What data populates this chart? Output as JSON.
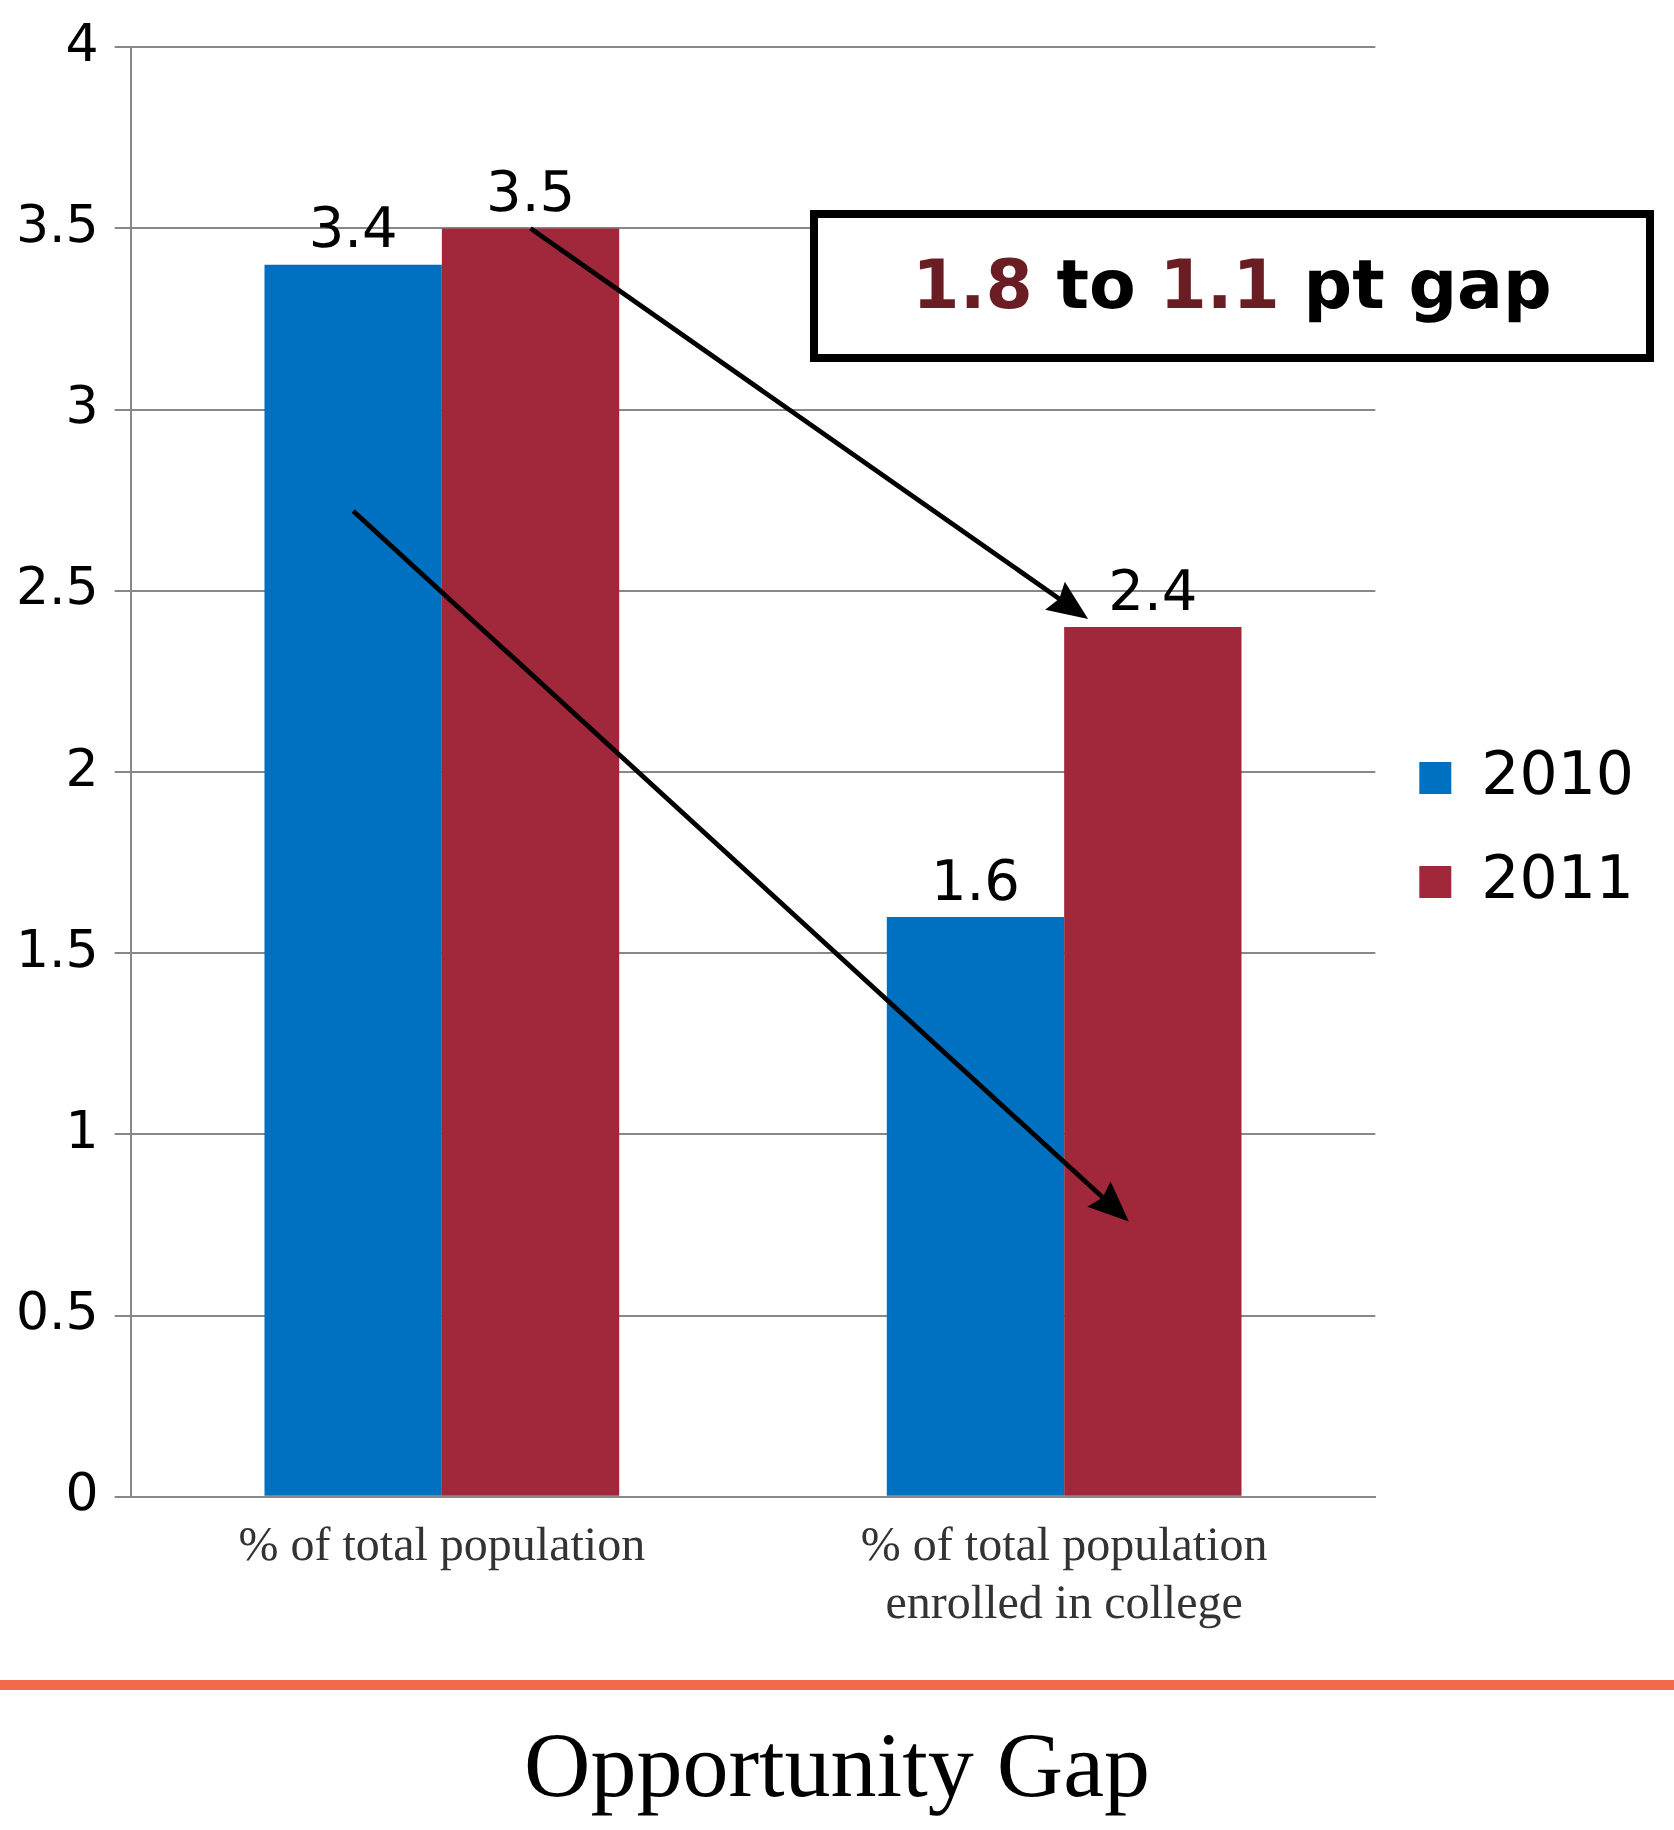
{
  "chart_data": {
    "type": "bar",
    "title": "Opportunity Gap",
    "categories": [
      "% of total population",
      "% of total population enrolled in college"
    ],
    "series": [
      {
        "name": "2010",
        "color": "#0070c0",
        "values": [
          3.4,
          1.6
        ]
      },
      {
        "name": "2011",
        "color": "#a0283a",
        "values": [
          3.5,
          2.4
        ]
      }
    ],
    "ylim": [
      0,
      4
    ],
    "yticks": [
      0,
      0.5,
      1,
      1.5,
      2,
      2.5,
      3,
      3.5,
      4
    ],
    "grid": "y",
    "legend": "right",
    "data_labels": true,
    "annotations": [
      "1.8 to 1.1 pt gap"
    ]
  }
}
